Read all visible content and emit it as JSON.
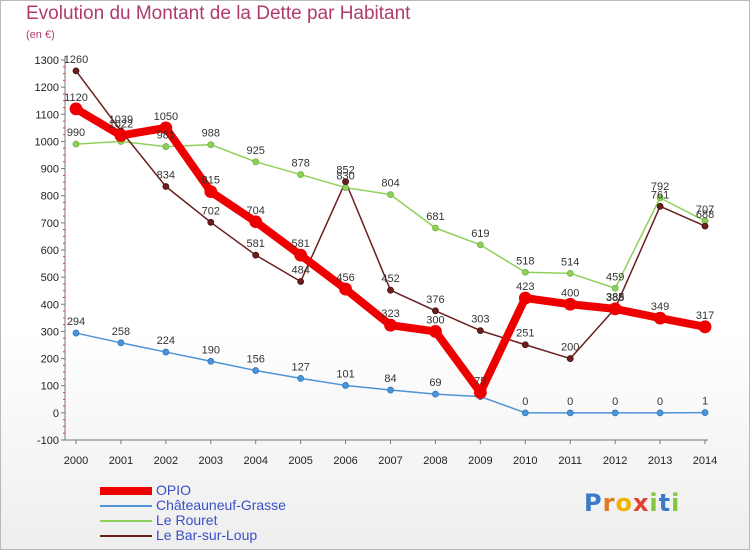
{
  "header": {
    "title": "Evolution du Montant de la Dette par Habitant",
    "unit": "(en €)"
  },
  "logo": {
    "text": "Proxiti",
    "letters": [
      {
        "char": "P",
        "color": "#3a7ac9"
      },
      {
        "char": "r",
        "color": "#e07b1f"
      },
      {
        "char": "o",
        "color": "#f0b400"
      },
      {
        "char": "x",
        "color": "#e8402f"
      },
      {
        "char": "i",
        "color": "#86c33d"
      },
      {
        "char": "t",
        "color": "#3a7ac9"
      },
      {
        "char": "i",
        "color": "#86c33d"
      }
    ]
  },
  "chart_data": {
    "type": "line",
    "title": "Evolution du Montant de la Dette par Habitant",
    "ylabel": "(en €)",
    "xlabel": "",
    "ylim": [
      -100,
      1300
    ],
    "ytick_step": 100,
    "grid": false,
    "legend_position": "bottom-left",
    "x": [
      "2000",
      "2001",
      "2002",
      "2003",
      "2004",
      "2005",
      "2006",
      "2007",
      "2008",
      "2009",
      "2010",
      "2011",
      "2012",
      "2013",
      "2014"
    ],
    "series": [
      {
        "name": "OPIO",
        "color": "#ee0000",
        "stroke_width": 8,
        "values": [
          1120,
          1022,
          1050,
          815,
          704,
          581,
          456,
          323,
          300,
          75,
          423,
          400,
          383,
          349,
          317
        ],
        "labels": [
          "1120",
          "1022",
          "1050",
          "815",
          "704",
          "581",
          "456",
          "323",
          "300",
          "75",
          "423",
          "400",
          "383",
          "349",
          "317"
        ]
      },
      {
        "name": "Châteauneuf-Grasse",
        "color": "#4d94d6",
        "stroke_width": 1.5,
        "values": [
          294,
          258,
          224,
          190,
          156,
          127,
          101,
          84,
          69,
          60,
          0,
          0,
          0,
          0,
          1
        ],
        "labels": [
          "294",
          "258",
          "224",
          "190",
          "156",
          "127",
          "101",
          "84",
          "69",
          "",
          "0",
          "0",
          "0",
          "0",
          "1"
        ]
      },
      {
        "name": "Le Rouret",
        "color": "#8ed15a",
        "stroke_width": 1.5,
        "values": [
          990,
          1000,
          981,
          988,
          925,
          878,
          830,
          804,
          681,
          619,
          518,
          514,
          459,
          792,
          707
        ],
        "labels": [
          "990",
          "",
          "981",
          "988",
          "925",
          "878",
          "830",
          "804",
          "681",
          "619",
          "518",
          "514",
          "459",
          "792",
          "707"
        ]
      },
      {
        "name": "Le Bar-sur-Loup",
        "color": "#6b1e1e",
        "stroke_width": 1.5,
        "values": [
          1260,
          1039,
          834,
          702,
          581,
          484,
          852,
          452,
          376,
          303,
          251,
          200,
          385,
          761,
          688
        ],
        "labels": [
          "1260",
          "1039",
          "834",
          "702",
          "581",
          "484",
          "852",
          "452",
          "376",
          "303",
          "251",
          "200",
          "385",
          "761",
          "688"
        ]
      }
    ]
  }
}
